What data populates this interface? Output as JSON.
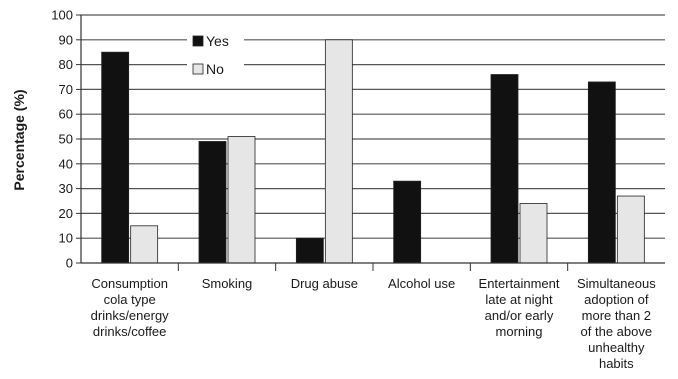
{
  "chart_data": {
    "type": "bar",
    "ylabel": "Percentage (%)",
    "xlabel": "",
    "ylim": [
      0,
      100
    ],
    "yticks": [
      0,
      10,
      20,
      30,
      40,
      50,
      60,
      70,
      80,
      90,
      100
    ],
    "grid": true,
    "legend": "top-left",
    "categories": [
      [
        "Consumption",
        "cola type",
        "drinks/energy",
        "drinks/coffee"
      ],
      [
        "Smoking"
      ],
      [
        "Drug abuse"
      ],
      [
        "Alcohol use"
      ],
      [
        "Entertainment",
        "late at night",
        "and/or early",
        "morning"
      ],
      [
        "Simultaneous",
        "adoption of",
        "more than 2",
        "of the above",
        "unhealthy",
        "habits"
      ]
    ],
    "series": [
      {
        "name": "Yes",
        "color": "#111111",
        "values": [
          85,
          49,
          10,
          33,
          76,
          73
        ]
      },
      {
        "name": "No",
        "color": "#e6e6e6",
        "values": [
          15,
          51,
          90,
          0,
          24,
          27
        ]
      }
    ]
  }
}
